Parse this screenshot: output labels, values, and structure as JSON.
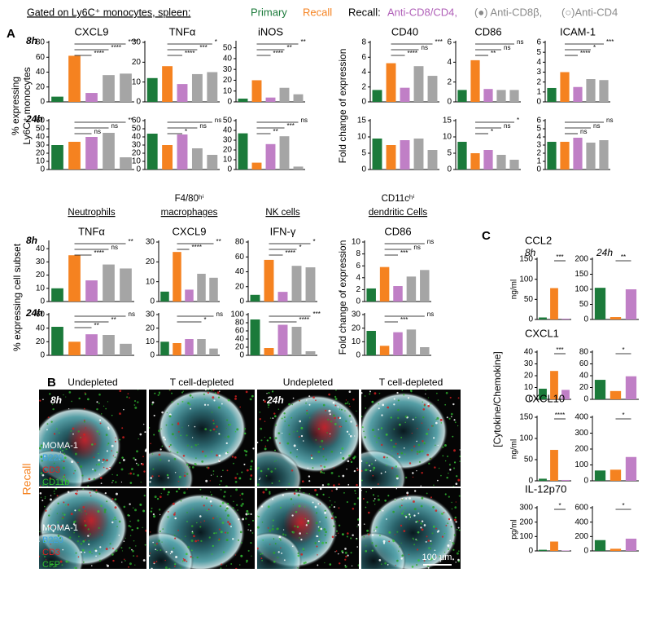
{
  "header": {
    "gated": "Gated on Ly6C⁺ monocytes, spleen:",
    "primary": "Primary",
    "recall": "Recall",
    "recall_prefix": "Recall:",
    "anti_cd8_cd4": "Anti-CD8/CD4,",
    "anti_cd8b": "(●) Anti-CD8β,",
    "anti_cd4": "(○)Anti-CD4"
  },
  "panel_labels": [
    "A",
    "B",
    "C"
  ],
  "axis_labels": {
    "monocytes": [
      "% expressing",
      "Ly6C⁺ monocytes"
    ],
    "fold_top": "Fold change of expression",
    "subset": "% expressing cell subset",
    "fold_mid": "Fold change of expression",
    "cytokine": "[Cytokine/Chemokine]"
  },
  "chart_data": [
    {
      "type": "bar",
      "title": "CXCL9",
      "time": "8h",
      "values": [
        7,
        62,
        12,
        36,
        38
      ],
      "colors": [
        "#1b7a3a",
        "#f58220",
        "#c07fc6",
        "#a5a5a5",
        "#a5a5a5"
      ],
      "ylim": [
        0,
        80
      ],
      "yticks": [
        0,
        20,
        40,
        60,
        80
      ],
      "significance": [
        {
          "bars": [
            1,
            4
          ],
          "label": "****"
        },
        {
          "bars": [
            1,
            3
          ],
          "label": "****"
        },
        {
          "bars": [
            1,
            2
          ],
          "label": "****"
        }
      ]
    },
    {
      "type": "bar",
      "title": "TNFα",
      "values": [
        12,
        18,
        9,
        14,
        15
      ],
      "colors": [
        "#1b7a3a",
        "#f58220",
        "#c07fc6",
        "#a5a5a5",
        "#a5a5a5"
      ],
      "ylim": [
        0,
        30
      ],
      "yticks": [
        0,
        10,
        20,
        30
      ],
      "significance": [
        {
          "bars": [
            1,
            4
          ],
          "label": "*"
        },
        {
          "bars": [
            1,
            3
          ],
          "label": "***"
        },
        {
          "bars": [
            1,
            2
          ],
          "label": "****"
        }
      ]
    },
    {
      "type": "bar",
      "title": "iNOS",
      "values": [
        3,
        20,
        4,
        13,
        7
      ],
      "colors": [
        "#1b7a3a",
        "#f58220",
        "#c07fc6",
        "#a5a5a5",
        "#a5a5a5"
      ],
      "ylim": [
        0,
        55
      ],
      "yticks": [
        0,
        10,
        20,
        30,
        40,
        50
      ],
      "significance": [
        {
          "bars": [
            1,
            4
          ],
          "label": "**"
        },
        {
          "bars": [
            1,
            3
          ],
          "label": "**"
        },
        {
          "bars": [
            1,
            2
          ],
          "label": "****"
        }
      ]
    },
    {
      "type": "bar",
      "title": "CD40",
      "values": [
        1.6,
        5.2,
        1.9,
        4.8,
        3.5
      ],
      "colors": [
        "#1b7a3a",
        "#f58220",
        "#c07fc6",
        "#a5a5a5",
        "#a5a5a5"
      ],
      "ylim": [
        0,
        8
      ],
      "yticks": [
        0,
        2,
        4,
        6,
        8
      ],
      "significance": [
        {
          "bars": [
            1,
            4
          ],
          "label": "***"
        },
        {
          "bars": [
            1,
            3
          ],
          "label": "ns"
        },
        {
          "bars": [
            1,
            2
          ],
          "label": "****"
        }
      ]
    },
    {
      "type": "bar",
      "title": "CD86",
      "values": [
        1.2,
        4.2,
        1.3,
        1.2,
        1.2
      ],
      "colors": [
        "#1b7a3a",
        "#f58220",
        "#c07fc6",
        "#a5a5a5",
        "#a5a5a5"
      ],
      "ylim": [
        0,
        6
      ],
      "yticks": [
        0,
        2,
        4,
        6
      ],
      "significance": [
        {
          "bars": [
            1,
            4
          ],
          "label": "ns"
        },
        {
          "bars": [
            1,
            3
          ],
          "label": "ns"
        },
        {
          "bars": [
            1,
            2
          ],
          "label": "**"
        }
      ]
    },
    {
      "type": "bar",
      "title": "ICAM-1",
      "values": [
        1.4,
        3.0,
        1.5,
        2.3,
        2.2
      ],
      "colors": [
        "#1b7a3a",
        "#f58220",
        "#c07fc6",
        "#a5a5a5",
        "#a5a5a5"
      ],
      "ylim": [
        0,
        6
      ],
      "yticks": [
        0,
        1,
        2,
        3,
        4,
        5,
        6
      ],
      "significance": [
        {
          "bars": [
            1,
            4
          ],
          "label": "***"
        },
        {
          "bars": [
            1,
            3
          ],
          "label": "*"
        },
        {
          "bars": [
            1,
            2
          ],
          "label": "****"
        }
      ]
    },
    {
      "type": "bar",
      "time": "24h",
      "values": [
        30,
        34,
        40,
        45,
        15
      ],
      "colors": [
        "#1b7a3a",
        "#f58220",
        "#c07fc6",
        "#a5a5a5",
        "#a5a5a5"
      ],
      "ylim": [
        0,
        60
      ],
      "yticks": [
        0,
        10,
        20,
        30,
        40,
        50,
        60
      ],
      "significance": [
        {
          "bars": [
            1,
            4
          ],
          "label": "**"
        },
        {
          "bars": [
            1,
            3
          ],
          "label": "ns"
        },
        {
          "bars": [
            1,
            2
          ],
          "label": "ns"
        }
      ]
    },
    {
      "type": "bar",
      "values": [
        44,
        30,
        43,
        26,
        18
      ],
      "colors": [
        "#1b7a3a",
        "#f58220",
        "#c07fc6",
        "#a5a5a5",
        "#a5a5a5"
      ],
      "ylim": [
        0,
        60
      ],
      "yticks": [
        0,
        10,
        20,
        30,
        40,
        50,
        60
      ],
      "significance": [
        {
          "bars": [
            1,
            4
          ],
          "label": "ns"
        },
        {
          "bars": [
            1,
            3
          ],
          "label": "ns"
        },
        {
          "bars": [
            1,
            2
          ],
          "label": "*"
        }
      ]
    },
    {
      "type": "bar",
      "values": [
        37,
        7,
        26,
        34,
        3
      ],
      "colors": [
        "#1b7a3a",
        "#f58220",
        "#c07fc6",
        "#a5a5a5",
        "#a5a5a5"
      ],
      "ylim": [
        0,
        50
      ],
      "yticks": [
        0,
        10,
        20,
        30,
        40,
        50
      ],
      "significance": [
        {
          "bars": [
            1,
            4
          ],
          "label": "ns"
        },
        {
          "bars": [
            1,
            3
          ],
          "label": "***"
        },
        {
          "bars": [
            1,
            2
          ],
          "label": "**"
        }
      ]
    },
    {
      "type": "bar",
      "values": [
        9.5,
        7.5,
        9,
        9.5,
        6
      ],
      "colors": [
        "#1b7a3a",
        "#f58220",
        "#c07fc6",
        "#a5a5a5",
        "#a5a5a5"
      ],
      "ylim": [
        0,
        15
      ],
      "yticks": [
        0,
        5,
        10,
        15
      ],
      "significance": []
    },
    {
      "type": "bar",
      "values": [
        8.5,
        5,
        6,
        4.5,
        3
      ],
      "colors": [
        "#1b7a3a",
        "#f58220",
        "#c07fc6",
        "#a5a5a5",
        "#a5a5a5"
      ],
      "ylim": [
        0,
        15
      ],
      "yticks": [
        0,
        5,
        10,
        15
      ],
      "significance": [
        {
          "bars": [
            1,
            4
          ],
          "label": "*"
        },
        {
          "bars": [
            1,
            3
          ],
          "label": "ns"
        },
        {
          "bars": [
            1,
            2
          ],
          "label": "*"
        }
      ]
    },
    {
      "type": "bar",
      "values": [
        3.4,
        3.4,
        3.9,
        3.3,
        3.6
      ],
      "colors": [
        "#1b7a3a",
        "#f58220",
        "#c07fc6",
        "#a5a5a5",
        "#a5a5a5"
      ],
      "ylim": [
        0,
        6
      ],
      "yticks": [
        0,
        1,
        2,
        3,
        4,
        5,
        6
      ],
      "significance": [
        {
          "bars": [
            1,
            4
          ],
          "label": "ns"
        },
        {
          "bars": [
            1,
            3
          ],
          "label": "ns"
        },
        {
          "bars": [
            1,
            2
          ],
          "label": "ns"
        }
      ]
    },
    {
      "type": "bar",
      "group": [
        "Neutrophils"
      ],
      "title": "TNFα",
      "time": "8h",
      "values": [
        10,
        35,
        16,
        28,
        25
      ],
      "colors": [
        "#1b7a3a",
        "#f58220",
        "#c07fc6",
        "#a5a5a5",
        "#a5a5a5"
      ],
      "ylim": [
        0,
        45
      ],
      "yticks": [
        0,
        10,
        20,
        30,
        40
      ],
      "significance": [
        {
          "bars": [
            1,
            4
          ],
          "label": "**"
        },
        {
          "bars": [
            1,
            3
          ],
          "label": "ns"
        },
        {
          "bars": [
            1,
            2
          ],
          "label": "****"
        }
      ]
    },
    {
      "type": "bar",
      "group": [
        "F4/80ʰⁱ",
        "macrophages"
      ],
      "title": "CXCL9",
      "values": [
        5,
        25,
        6,
        14,
        12
      ],
      "colors": [
        "#1b7a3a",
        "#f58220",
        "#c07fc6",
        "#a5a5a5",
        "#a5a5a5"
      ],
      "ylim": [
        0,
        30
      ],
      "yticks": [
        0,
        10,
        20,
        30
      ],
      "significance": [
        {
          "bars": [
            1,
            4
          ],
          "label": "**"
        },
        {
          "bars": [
            1,
            2
          ],
          "label": "****"
        }
      ]
    },
    {
      "type": "bar",
      "group": [
        "NK cells"
      ],
      "title": "IFN-γ",
      "values": [
        9,
        56,
        13,
        48,
        46
      ],
      "colors": [
        "#1b7a3a",
        "#f58220",
        "#c07fc6",
        "#a5a5a5",
        "#a5a5a5"
      ],
      "ylim": [
        0,
        80
      ],
      "yticks": [
        0,
        20,
        40,
        60,
        80
      ],
      "significance": [
        {
          "bars": [
            1,
            4
          ],
          "label": "*"
        },
        {
          "bars": [
            1,
            3
          ],
          "label": "*"
        },
        {
          "bars": [
            1,
            2
          ],
          "label": "****"
        }
      ]
    },
    {
      "type": "bar",
      "group": [
        "CD11cʰⁱ",
        "dendritic Cells"
      ],
      "title": "CD86",
      "values": [
        2.2,
        5.8,
        2.6,
        4.2,
        5.3
      ],
      "colors": [
        "#1b7a3a",
        "#f58220",
        "#c07fc6",
        "#a5a5a5",
        "#a5a5a5"
      ],
      "ylim": [
        0,
        10
      ],
      "yticks": [
        0,
        2,
        4,
        6,
        8,
        10
      ],
      "significance": [
        {
          "bars": [
            1,
            4
          ],
          "label": "ns"
        },
        {
          "bars": [
            1,
            3
          ],
          "label": "ns"
        },
        {
          "bars": [
            1,
            2
          ],
          "label": "***"
        }
      ]
    },
    {
      "type": "bar",
      "time": "24h",
      "values": [
        42,
        20,
        31,
        30,
        17
      ],
      "colors": [
        "#1b7a3a",
        "#f58220",
        "#c07fc6",
        "#a5a5a5",
        "#a5a5a5"
      ],
      "ylim": [
        0,
        60
      ],
      "yticks": [
        0,
        20,
        40,
        60
      ],
      "significance": [
        {
          "bars": [
            1,
            4
          ],
          "label": "ns"
        },
        {
          "bars": [
            1,
            3
          ],
          "label": "**"
        },
        {
          "bars": [
            1,
            2
          ],
          "label": "**"
        }
      ]
    },
    {
      "type": "bar",
      "values": [
        10,
        9,
        12,
        12,
        5
      ],
      "colors": [
        "#1b7a3a",
        "#f58220",
        "#c07fc6",
        "#a5a5a5",
        "#a5a5a5"
      ],
      "ylim": [
        0,
        30
      ],
      "yticks": [
        0,
        10,
        20,
        30
      ],
      "significance": [
        {
          "bars": [
            1,
            4
          ],
          "label": "ns"
        },
        {
          "bars": [
            1,
            3
          ],
          "label": "*"
        }
      ]
    },
    {
      "type": "bar",
      "values": [
        88,
        18,
        75,
        70,
        10
      ],
      "colors": [
        "#1b7a3a",
        "#f58220",
        "#c07fc6",
        "#a5a5a5",
        "#a5a5a5"
      ],
      "ylim": [
        0,
        100
      ],
      "yticks": [
        0,
        20,
        40,
        60,
        80,
        100
      ],
      "significance": [
        {
          "bars": [
            1,
            4
          ],
          "label": "***"
        },
        {
          "bars": [
            1,
            3
          ],
          "label": "****"
        }
      ]
    },
    {
      "type": "bar",
      "values": [
        18,
        7,
        17,
        19,
        6
      ],
      "colors": [
        "#1b7a3a",
        "#f58220",
        "#c07fc6",
        "#a5a5a5",
        "#a5a5a5"
      ],
      "ylim": [
        0,
        30
      ],
      "yticks": [
        0,
        10,
        20,
        30
      ],
      "significance": [
        {
          "bars": [
            1,
            4
          ],
          "label": "ns"
        },
        {
          "bars": [
            1,
            2
          ],
          "label": "***"
        }
      ]
    },
    {
      "type": "bar",
      "title": "CCL2",
      "time": "8h",
      "unit": "ng/ml",
      "values": [
        5,
        78,
        2
      ],
      "colors": [
        "#1b7a3a",
        "#f58220",
        "#c07fc6"
      ],
      "ylim": [
        0,
        150
      ],
      "yticks": [
        0,
        50,
        100,
        150
      ],
      "significance": [
        {
          "bars": [
            1,
            2
          ],
          "label": "***"
        }
      ]
    },
    {
      "type": "bar",
      "time": "24h",
      "values": [
        105,
        8,
        100
      ],
      "colors": [
        "#1b7a3a",
        "#f58220",
        "#c07fc6"
      ],
      "ylim": [
        0,
        200
      ],
      "yticks": [
        0,
        50,
        100,
        150,
        200
      ],
      "significance": [
        {
          "bars": [
            1,
            2
          ],
          "label": "**"
        }
      ]
    },
    {
      "type": "bar",
      "title": "CXCL1",
      "values": [
        9,
        24,
        8
      ],
      "colors": [
        "#1b7a3a",
        "#f58220",
        "#c07fc6"
      ],
      "ylim": [
        0,
        40
      ],
      "yticks": [
        0,
        10,
        20,
        30,
        40
      ],
      "significance": [
        {
          "bars": [
            1,
            2
          ],
          "label": "***"
        }
      ]
    },
    {
      "type": "bar",
      "values": [
        33,
        14,
        39
      ],
      "colors": [
        "#1b7a3a",
        "#f58220",
        "#c07fc6"
      ],
      "ylim": [
        0,
        80
      ],
      "yticks": [
        0,
        20,
        40,
        60,
        80
      ],
      "significance": [
        {
          "bars": [
            1,
            2
          ],
          "label": "*"
        }
      ]
    },
    {
      "type": "bar",
      "title": "CXCL10",
      "unit": "ng/ml",
      "values": [
        5,
        73,
        2
      ],
      "colors": [
        "#1b7a3a",
        "#f58220",
        "#c07fc6"
      ],
      "ylim": [
        0,
        150
      ],
      "yticks": [
        0,
        50,
        100,
        150
      ],
      "significance": [
        {
          "bars": [
            1,
            2
          ],
          "label": "****"
        }
      ]
    },
    {
      "type": "bar",
      "values": [
        65,
        70,
        150
      ],
      "colors": [
        "#1b7a3a",
        "#f58220",
        "#c07fc6"
      ],
      "ylim": [
        0,
        400
      ],
      "yticks": [
        0,
        100,
        200,
        300,
        400
      ],
      "significance": [
        {
          "bars": [
            1,
            2
          ],
          "label": "*"
        }
      ]
    },
    {
      "type": "bar",
      "title": "IL-12p70",
      "unit": "pg/ml",
      "values": [
        8,
        65,
        3
      ],
      "colors": [
        "#1b7a3a",
        "#f58220",
        "#c07fc6"
      ],
      "ylim": [
        0,
        300
      ],
      "yticks": [
        0,
        100,
        200,
        300
      ],
      "significance": [
        {
          "bars": [
            1,
            2
          ],
          "label": "*"
        }
      ]
    },
    {
      "type": "bar",
      "values": [
        150,
        30,
        170
      ],
      "colors": [
        "#1b7a3a",
        "#f58220",
        "#c07fc6"
      ],
      "ylim": [
        0,
        600
      ],
      "yticks": [
        0,
        200,
        400,
        600
      ],
      "significance": [
        {
          "bars": [
            1,
            2
          ],
          "label": "*"
        }
      ]
    }
  ],
  "panel_b": {
    "columns": [
      "Undepleted",
      "T cell-depleted",
      "Undepleted",
      "T cell-depleted"
    ],
    "times": [
      "8h",
      "24h"
    ],
    "row_label": "Recall",
    "stains_top": [
      "MOMA-1",
      "B220",
      "CD3",
      "CD11b"
    ],
    "stains_bottom": [
      "MOMA-1",
      "B220",
      "CD3",
      "CFP"
    ],
    "scale": "100 µm"
  }
}
